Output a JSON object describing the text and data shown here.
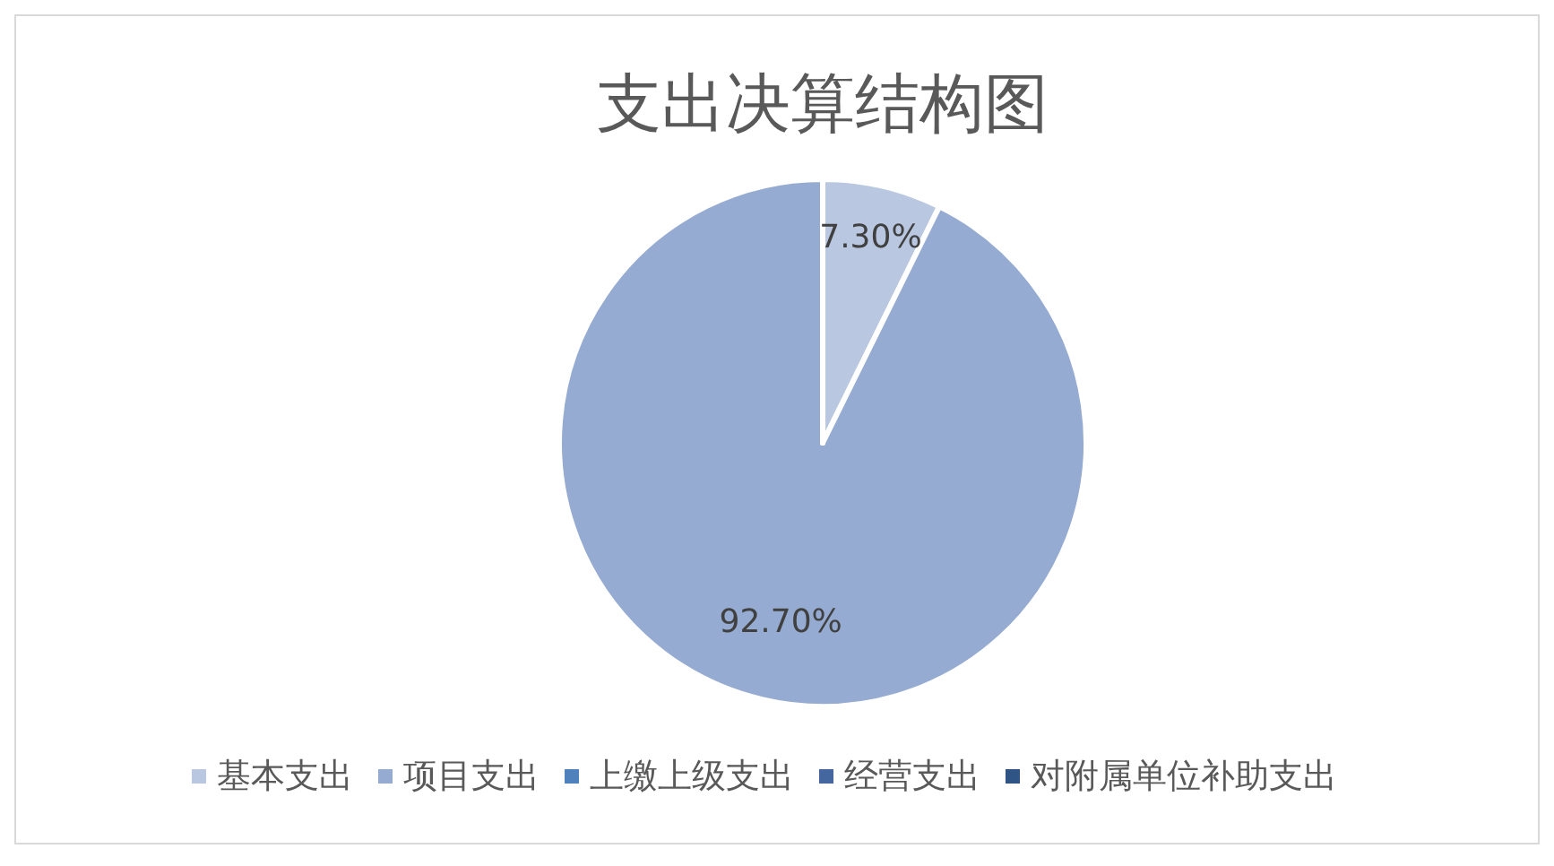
{
  "chart_data": {
    "type": "pie",
    "title": "支出决算结构图",
    "categories": [
      "基本支出",
      "项目支出",
      "上缴上级支出",
      "经营支出",
      "对附属单位补助支出"
    ],
    "values": [
      7.3,
      92.7,
      0,
      0,
      0
    ],
    "colors": [
      "#b9c7e0",
      "#95abd1",
      "#4f81bd",
      "#44679f",
      "#2f5486"
    ],
    "value_labels": [
      "7.30%",
      "92.70%",
      null,
      null,
      null
    ],
    "legend": "bottom"
  }
}
